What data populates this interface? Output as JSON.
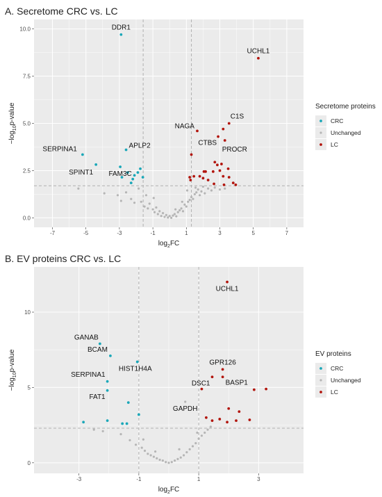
{
  "colors": {
    "crc": "#1aa7b8",
    "unchanged": "#b5b5b5",
    "lc": "#b2150d",
    "panel_bg": "#ebebeb",
    "grid": "#ffffff",
    "threshold": "#b0b0b0"
  },
  "chart_data": [
    {
      "type": "scatter",
      "title": "A. Secretome CRC vs. LC",
      "xlabel_base": "log",
      "xlabel_sub": "2",
      "xlabel_suffix": "FC",
      "ylabel_prefix": "−log",
      "ylabel_sub": "10",
      "ylabel_suffix": "p-value",
      "xlim": [
        -8.1,
        8.0
      ],
      "ylim": [
        -0.5,
        10.5
      ],
      "xticks": [
        -7,
        -5,
        -3,
        -1,
        1,
        3,
        5,
        7
      ],
      "yticks": [
        0.0,
        2.5,
        5.0,
        7.5,
        10.0
      ],
      "ytick_labels": [
        "0.0",
        "2.5",
        "5.0",
        "7.5",
        "10.0"
      ],
      "thresholds": {
        "x": [
          -1.58,
          1.3
        ],
        "y": 1.7
      },
      "legend": {
        "title": "Secretome proteins",
        "entries": [
          "CRC",
          "Unchanged",
          "LC"
        ],
        "placement": "right"
      },
      "series": [
        {
          "name": "CRC",
          "points": [
            [
              -2.9,
              9.7
            ],
            [
              -5.2,
              3.35
            ],
            [
              -4.4,
              2.82
            ],
            [
              -2.6,
              3.6
            ],
            [
              -2.95,
              2.7
            ],
            [
              -2.85,
              2.15
            ],
            [
              -2.5,
              2.4
            ],
            [
              -2.2,
              2.05
            ],
            [
              -2.1,
              2.25
            ],
            [
              -2.3,
              1.85
            ],
            [
              -1.75,
              2.6
            ],
            [
              -1.6,
              2.15
            ],
            [
              -1.9,
              2.4
            ]
          ]
        },
        {
          "name": "Unchanged",
          "points": [
            [
              -5.45,
              1.55
            ],
            [
              -3.9,
              1.3
            ],
            [
              -3.1,
              1.2
            ],
            [
              -2.9,
              0.9
            ],
            [
              -2.6,
              1.35
            ],
            [
              -2.3,
              1.0
            ],
            [
              -2.1,
              0.8
            ],
            [
              -1.7,
              0.85
            ],
            [
              -1.5,
              0.6
            ],
            [
              -1.3,
              0.5
            ],
            [
              -1.2,
              0.75
            ],
            [
              -1.0,
              0.45
            ],
            [
              -0.9,
              0.3
            ],
            [
              -0.8,
              0.55
            ],
            [
              -0.7,
              0.2
            ],
            [
              -0.6,
              0.35
            ],
            [
              -0.5,
              0.1
            ],
            [
              -0.4,
              0.25
            ],
            [
              -0.3,
              0.05
            ],
            [
              -0.2,
              0.15
            ],
            [
              -0.1,
              0.02
            ],
            [
              0.0,
              0.1
            ],
            [
              0.1,
              0.0
            ],
            [
              0.2,
              0.12
            ],
            [
              0.3,
              0.2
            ],
            [
              0.4,
              0.08
            ],
            [
              0.5,
              0.3
            ],
            [
              0.6,
              0.4
            ],
            [
              0.7,
              0.5
            ],
            [
              0.8,
              0.35
            ],
            [
              0.9,
              0.7
            ],
            [
              1.0,
              0.6
            ],
            [
              1.1,
              0.85
            ],
            [
              1.2,
              0.95
            ],
            [
              1.3,
              1.1
            ],
            [
              1.4,
              1.0
            ],
            [
              1.5,
              1.25
            ],
            [
              1.6,
              1.35
            ],
            [
              1.7,
              1.5
            ],
            [
              1.8,
              1.2
            ],
            [
              1.9,
              1.4
            ],
            [
              2.0,
              1.65
            ],
            [
              2.1,
              1.3
            ],
            [
              2.3,
              1.55
            ],
            [
              2.5,
              1.45
            ],
            [
              2.7,
              1.6
            ],
            [
              3.0,
              1.5
            ],
            [
              3.3,
              1.55
            ],
            [
              -1.85,
              1.55
            ],
            [
              -1.4,
              1.2
            ],
            [
              -0.95,
              1.05
            ],
            [
              0.35,
              0.45
            ],
            [
              0.75,
              0.85
            ],
            [
              1.05,
              1.45
            ],
            [
              1.55,
              1.6
            ]
          ]
        },
        {
          "name": "LC",
          "points": [
            [
              5.3,
              8.45
            ],
            [
              3.55,
              5.0
            ],
            [
              3.2,
              4.7
            ],
            [
              2.9,
              4.3
            ],
            [
              3.3,
              4.1
            ],
            [
              1.65,
              4.6
            ],
            [
              1.3,
              3.35
            ],
            [
              2.7,
              2.95
            ],
            [
              2.85,
              2.8
            ],
            [
              3.1,
              2.85
            ],
            [
              3.5,
              2.6
            ],
            [
              2.05,
              2.45
            ],
            [
              2.15,
              2.45
            ],
            [
              1.2,
              2.15
            ],
            [
              1.45,
              2.2
            ],
            [
              1.8,
              2.2
            ],
            [
              2.0,
              2.1
            ],
            [
              2.3,
              2.0
            ],
            [
              2.6,
              2.45
            ],
            [
              3.0,
              2.5
            ],
            [
              3.2,
              2.2
            ],
            [
              3.55,
              2.15
            ],
            [
              3.8,
              1.85
            ],
            [
              3.95,
              1.75
            ],
            [
              2.65,
              1.8
            ],
            [
              3.25,
              1.75
            ],
            [
              1.25,
              2.0
            ]
          ]
        }
      ],
      "annotations": [
        {
          "text": "DDR1",
          "x": -2.9,
          "y": 9.7
        },
        {
          "text": "UCHL1",
          "x": 5.3,
          "y": 8.45
        },
        {
          "text": "C1S",
          "x": 3.55,
          "y": 5.0
        },
        {
          "text": "NAGA",
          "x": 1.65,
          "y": 4.6
        },
        {
          "text": "CTBS",
          "x": 2.9,
          "y": 4.3
        },
        {
          "text": "PROCR",
          "x": 3.3,
          "y": 4.1
        },
        {
          "text": "APLP2",
          "x": -2.6,
          "y": 3.6
        },
        {
          "text": "SERPINA1",
          "x": -5.2,
          "y": 3.35
        },
        {
          "text": "SPINT1",
          "x": -4.4,
          "y": 2.82
        },
        {
          "text": "FAM3C",
          "x": -2.95,
          "y": 2.7
        }
      ]
    },
    {
      "type": "scatter",
      "title": "B. EV proteins CRC vs. LC",
      "xlabel_base": "log",
      "xlabel_sub": "2",
      "xlabel_suffix": "FC",
      "ylabel_prefix": "−log",
      "ylabel_sub": "10",
      "ylabel_suffix": "p-value",
      "xlim": [
        -4.5,
        4.5
      ],
      "ylim": [
        -0.7,
        13.0
      ],
      "xticks": [
        -3,
        -1,
        1,
        3
      ],
      "yticks": [
        0,
        5,
        10
      ],
      "ytick_labels": [
        "0",
        "5",
        "10"
      ],
      "thresholds": {
        "x": [
          -1.0,
          1.0
        ],
        "y": 2.3
      },
      "legend": {
        "title": "EV proteins",
        "entries": [
          "CRC",
          "Unchanged",
          "LC"
        ],
        "placement": "right"
      },
      "series": [
        {
          "name": "CRC",
          "points": [
            [
              -2.3,
              7.9
            ],
            [
              -1.95,
              7.1
            ],
            [
              -1.05,
              6.7
            ],
            [
              -2.05,
              5.4
            ],
            [
              -2.05,
              4.8
            ],
            [
              -1.35,
              4.0
            ],
            [
              -1.0,
              3.2
            ],
            [
              -2.85,
              2.7
            ],
            [
              -2.05,
              2.8
            ],
            [
              -1.55,
              2.6
            ],
            [
              -1.4,
              2.6
            ]
          ]
        },
        {
          "name": "Unchanged",
          "points": [
            [
              -2.5,
              2.2
            ],
            [
              -2.2,
              2.1
            ],
            [
              -1.6,
              1.9
            ],
            [
              -1.3,
              1.5
            ],
            [
              -1.1,
              1.2
            ],
            [
              -0.9,
              1.0
            ],
            [
              -0.8,
              0.8
            ],
            [
              -0.7,
              0.6
            ],
            [
              -0.6,
              0.5
            ],
            [
              -0.5,
              0.4
            ],
            [
              -0.4,
              0.3
            ],
            [
              -0.3,
              0.2
            ],
            [
              -0.2,
              0.15
            ],
            [
              -0.1,
              0.05
            ],
            [
              0.0,
              0.0
            ],
            [
              0.1,
              0.05
            ],
            [
              0.2,
              0.15
            ],
            [
              0.3,
              0.25
            ],
            [
              0.4,
              0.35
            ],
            [
              0.5,
              0.5
            ],
            [
              0.6,
              0.7
            ],
            [
              0.7,
              0.9
            ],
            [
              0.8,
              1.1
            ],
            [
              0.9,
              1.3
            ],
            [
              1.0,
              1.6
            ],
            [
              1.1,
              1.8
            ],
            [
              1.2,
              2.0
            ],
            [
              1.3,
              2.2
            ],
            [
              1.4,
              2.4
            ],
            [
              0.55,
              4.05
            ],
            [
              -0.85,
              1.55
            ],
            [
              0.95,
              2.0
            ],
            [
              -0.45,
              0.75
            ],
            [
              0.35,
              0.9
            ]
          ]
        },
        {
          "name": "LC",
          "points": [
            [
              1.95,
              12.0
            ],
            [
              1.8,
              6.2
            ],
            [
              1.45,
              5.7
            ],
            [
              1.8,
              5.7
            ],
            [
              1.1,
              4.9
            ],
            [
              3.25,
              4.9
            ],
            [
              2.85,
              4.85
            ],
            [
              2.0,
              3.6
            ],
            [
              2.35,
              3.4
            ],
            [
              1.25,
              3.0
            ],
            [
              1.45,
              2.8
            ],
            [
              1.7,
              2.9
            ],
            [
              1.95,
              2.7
            ],
            [
              2.25,
              2.8
            ],
            [
              2.7,
              2.85
            ]
          ]
        }
      ],
      "annotations": [
        {
          "text": "UCHL1",
          "x": 1.95,
          "y": 12.0
        },
        {
          "text": "GANAB",
          "x": -2.3,
          "y": 7.9
        },
        {
          "text": "BCAM",
          "x": -1.95,
          "y": 7.1
        },
        {
          "text": "HIST1H4A",
          "x": -1.05,
          "y": 6.7
        },
        {
          "text": "GPR126",
          "x": 1.8,
          "y": 6.2
        },
        {
          "text": "DSC1",
          "x": 1.45,
          "y": 5.7
        },
        {
          "text": "BASP1",
          "x": 1.8,
          "y": 5.7
        },
        {
          "text": "SERPINA1",
          "x": -2.05,
          "y": 5.4
        },
        {
          "text": "FAT1",
          "x": -2.05,
          "y": 4.8
        },
        {
          "text": "GAPDH",
          "x": 0.55,
          "y": 4.05
        }
      ]
    }
  ]
}
